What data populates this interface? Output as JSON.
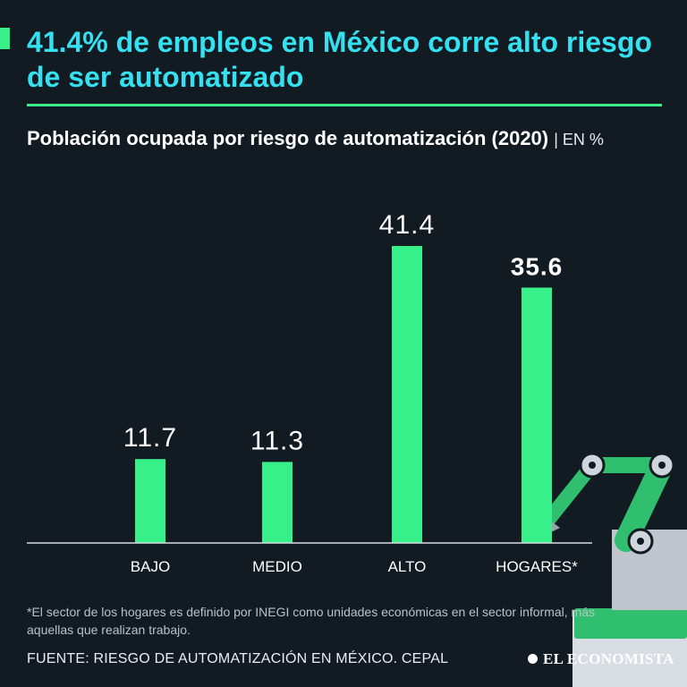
{
  "header": {
    "title": "41.4% de empleos en México corre alto riesgo de ser automatizado",
    "subtitle": "Población ocupada por riesgo de automatización (2020)",
    "unit": "| EN %"
  },
  "chart_data": {
    "type": "bar",
    "categories": [
      "BAJO",
      "MEDIO",
      "ALTO",
      "HOGARES*"
    ],
    "values": [
      11.7,
      11.3,
      41.4,
      35.6
    ],
    "labels": [
      "11.7",
      "11.3",
      "41.4",
      "35.6"
    ],
    "highlight_index": 3,
    "title": "Población ocupada por riesgo de automatización (2020)",
    "ylabel": "EN %",
    "ylim": [
      0,
      45
    ],
    "bar_color": "#38f08a",
    "label_color": "#ffffff"
  },
  "footer": {
    "footnote": "*El sector de los hogares es definido por INEGI como unidades económicas en el sector informal, más aquellas que realizan trabajo.",
    "source": "FUENTE: RIESGO DE AUTOMATIZACIÓN EN MÉXICO. CEPAL",
    "brand": "EL ECONOMISTA"
  },
  "colors": {
    "background": "#121a22",
    "accent": "#38f08a",
    "title": "#35e0f0"
  },
  "illustration": {
    "icon": "robot-arm-icon"
  }
}
